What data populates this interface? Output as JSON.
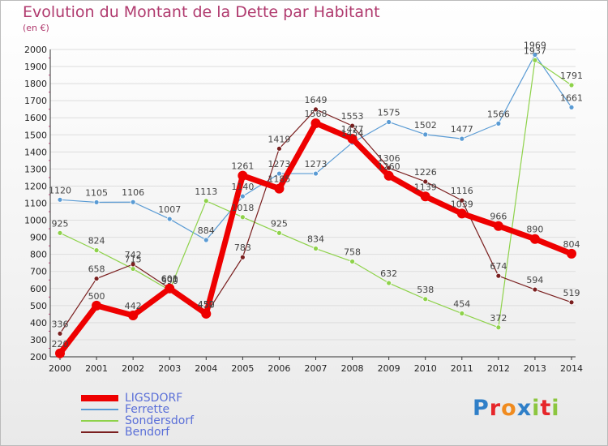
{
  "title": "Evolution du Montant de la Dette par Habitant",
  "subtitle": "(en €)",
  "brand": {
    "text": "Proxiti",
    "letters": [
      "P",
      "r",
      "o",
      "x",
      "i",
      "t",
      "i"
    ],
    "colors": [
      "#2f7fc8",
      "#e6262a",
      "#f08b1f",
      "#2f7fc8",
      "#8cc63f",
      "#e6262a",
      "#8cc63f"
    ]
  },
  "chart_data": {
    "type": "line",
    "x": [
      2000,
      2001,
      2002,
      2003,
      2004,
      2005,
      2006,
      2007,
      2008,
      2009,
      2010,
      2011,
      2012,
      2013,
      2014
    ],
    "ylim": [
      200,
      2000
    ],
    "yticks": [
      200,
      300,
      400,
      500,
      600,
      700,
      800,
      900,
      1000,
      1100,
      1200,
      1300,
      1400,
      1500,
      1600,
      1700,
      1800,
      1900,
      2000
    ],
    "grid": "horizontal",
    "legend_position": "bottom-left",
    "series": [
      {
        "name": "LIGSDORF",
        "color": "#ee0000",
        "width": 7,
        "marker": 6,
        "values": [
          220,
          500,
          442,
          600,
          452,
          1261,
          1185,
          1568,
          1477,
          1260,
          1139,
          1039,
          966,
          890,
          804
        ]
      },
      {
        "name": "Ferrette",
        "color": "#5a9bd4",
        "width": 1.2,
        "marker": 3,
        "values": [
          1120,
          1105,
          1106,
          1007,
          884,
          1140,
          1273,
          1273,
          1454,
          1575,
          1502,
          1477,
          1566,
          1969,
          1661
        ]
      },
      {
        "name": "Sondersdorf",
        "color": "#8ed24a",
        "width": 1.2,
        "marker": 3,
        "values": [
          925,
          824,
          715,
          590,
          1113,
          1018,
          925,
          834,
          758,
          632,
          538,
          454,
          372,
          1937,
          1791
        ]
      },
      {
        "name": "Bendorf",
        "color": "#7a1f1f",
        "width": 1.2,
        "marker": 3,
        "values": [
          336,
          658,
          742,
          601,
          450,
          783,
          1419,
          1649,
          1553,
          1306,
          1226,
          1116,
          674,
          594,
          519
        ]
      }
    ]
  }
}
